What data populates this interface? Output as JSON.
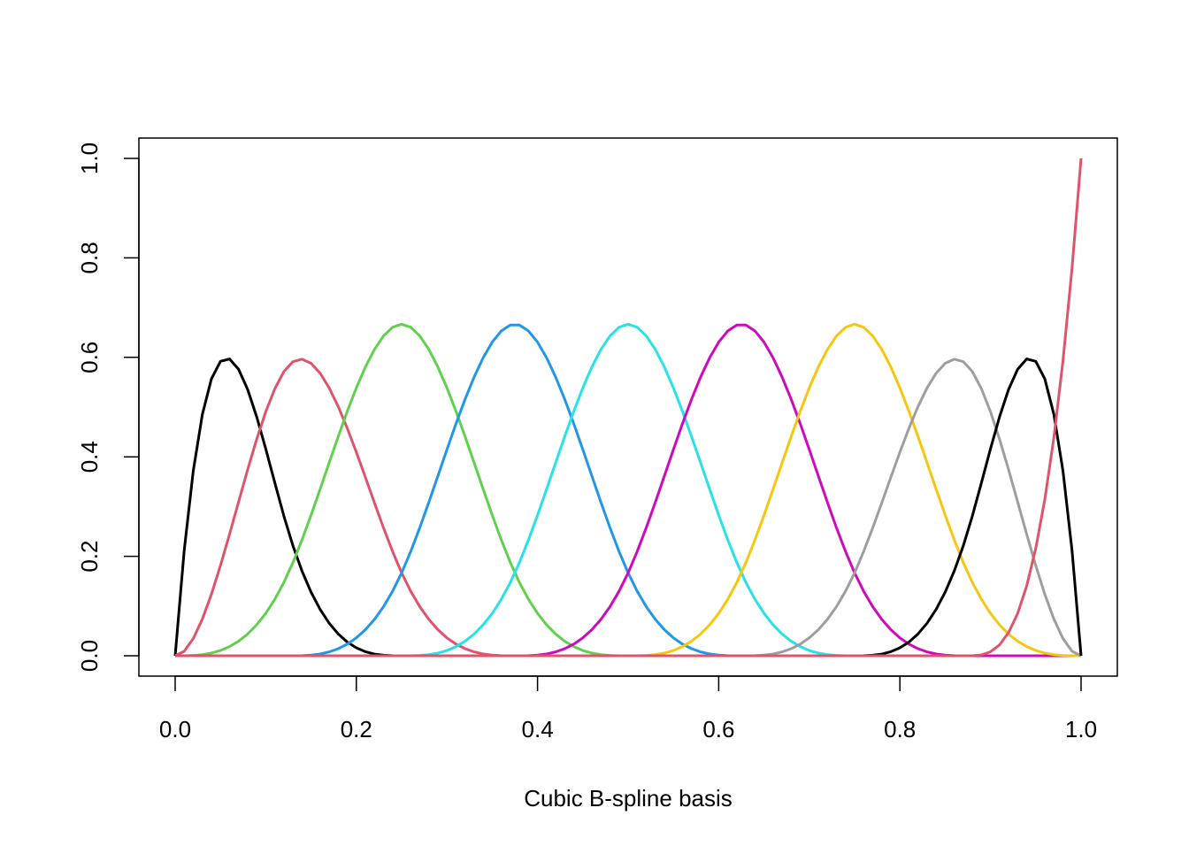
{
  "chart_data": {
    "type": "line",
    "title": "",
    "xlabel": "Cubic B-spline basis",
    "ylabel": "",
    "xlim": [
      0,
      1
    ],
    "ylim": [
      0,
      1
    ],
    "x_ticks": [
      "0.0",
      "0.2",
      "0.4",
      "0.6",
      "0.8",
      "1.0"
    ],
    "y_ticks": [
      "0.0",
      "0.2",
      "0.4",
      "0.6",
      "0.8",
      "1.0"
    ],
    "grid": false,
    "legend": "none",
    "spline": {
      "degree": 3,
      "interior_knots": [
        0.125,
        0.25,
        0.375,
        0.5,
        0.625,
        0.75,
        0.875
      ],
      "boundary_knots": [
        0,
        1
      ],
      "basis_count": 10
    },
    "series": [
      {
        "color": "#000000",
        "peak_x": 0.06,
        "peak_y": 0.59
      },
      {
        "color": "#DF536B",
        "peak_x": 0.14,
        "peak_y": 0.59
      },
      {
        "color": "#61D04F",
        "peak_x": 0.25,
        "peak_y": 0.67
      },
      {
        "color": "#2297E6",
        "peak_x": 0.375,
        "peak_y": 0.67
      },
      {
        "color": "#28E2E5",
        "peak_x": 0.5,
        "peak_y": 0.67
      },
      {
        "color": "#CD0BBC",
        "peak_x": 0.625,
        "peak_y": 0.67
      },
      {
        "color": "#F5C710",
        "peak_x": 0.75,
        "peak_y": 0.67
      },
      {
        "color": "#9E9E9E",
        "peak_x": 0.86,
        "peak_y": 0.59
      },
      {
        "color": "#000000",
        "peak_x": 0.94,
        "peak_y": 0.59
      },
      {
        "color": "#DF536B",
        "peak_x": 1.0,
        "peak_y": 1.0
      }
    ]
  }
}
